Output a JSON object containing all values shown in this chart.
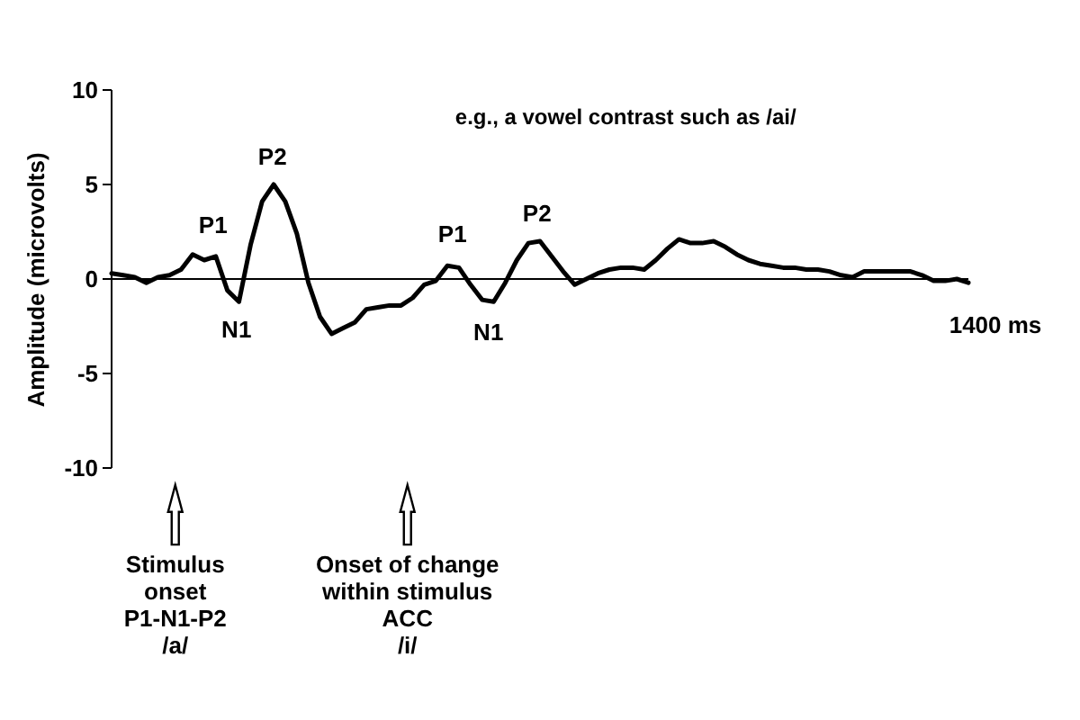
{
  "chart_data": {
    "type": "line",
    "ylabel": "Amplitude (microvolts)",
    "ylim": [
      -10,
      10
    ],
    "yticks": [
      -10,
      -5,
      0,
      5,
      10
    ],
    "categories": [
      null,
      null,
      null,
      null,
      null,
      null,
      null,
      null,
      null,
      null,
      null,
      null,
      null,
      null,
      null,
      null,
      null,
      null,
      null,
      null,
      null,
      null,
      null,
      null,
      null,
      null,
      null,
      null,
      null,
      null,
      null,
      null,
      null,
      null,
      null,
      null,
      null,
      null,
      null,
      null,
      null,
      null,
      null,
      null,
      null,
      null,
      null,
      null,
      null,
      null,
      null,
      null,
      null,
      null,
      null,
      null,
      null,
      null,
      null,
      null,
      null,
      null,
      null,
      null,
      null,
      null,
      null,
      null,
      null,
      null,
      null,
      null,
      null,
      null,
      null
    ],
    "series": [
      {
        "color": "#000000",
        "values": [
          0.3,
          0.2,
          0.1,
          -0.2,
          0.1,
          0.2,
          0.5,
          1.3,
          1.0,
          1.2,
          -0.6,
          -1.2,
          1.8,
          4.1,
          5.0,
          4.1,
          2.4,
          -0.2,
          -2.0,
          -2.9,
          -2.6,
          -2.3,
          -1.6,
          -1.5,
          -1.4,
          -1.4,
          -1.0,
          -0.3,
          -0.1,
          0.7,
          0.6,
          -0.3,
          -1.1,
          -1.2,
          -0.2,
          1.0,
          1.9,
          2.0,
          1.2,
          0.4,
          -0.3,
          0.0,
          0.3,
          0.5,
          0.6,
          0.6,
          0.5,
          1.0,
          1.6,
          2.1,
          1.9,
          1.9,
          2.0,
          1.7,
          1.3,
          1.0,
          0.8,
          0.7,
          0.6,
          0.6,
          0.5,
          0.5,
          0.4,
          0.2,
          0.1,
          0.4,
          0.4,
          0.4,
          0.4,
          0.4,
          0.2,
          -0.1,
          -0.1,
          0.0,
          -0.2
        ]
      }
    ],
    "annotations": [
      "e.g., a vowel contrast such as  /ai/",
      "P1",
      "N1",
      "P2",
      "P1",
      "N1",
      "P2",
      "1400 ms",
      "Stimulus\nonset\nP1-N1-P2\n/a/",
      "Onset of change\nwithin stimulus\nACC\n/i/"
    ]
  }
}
